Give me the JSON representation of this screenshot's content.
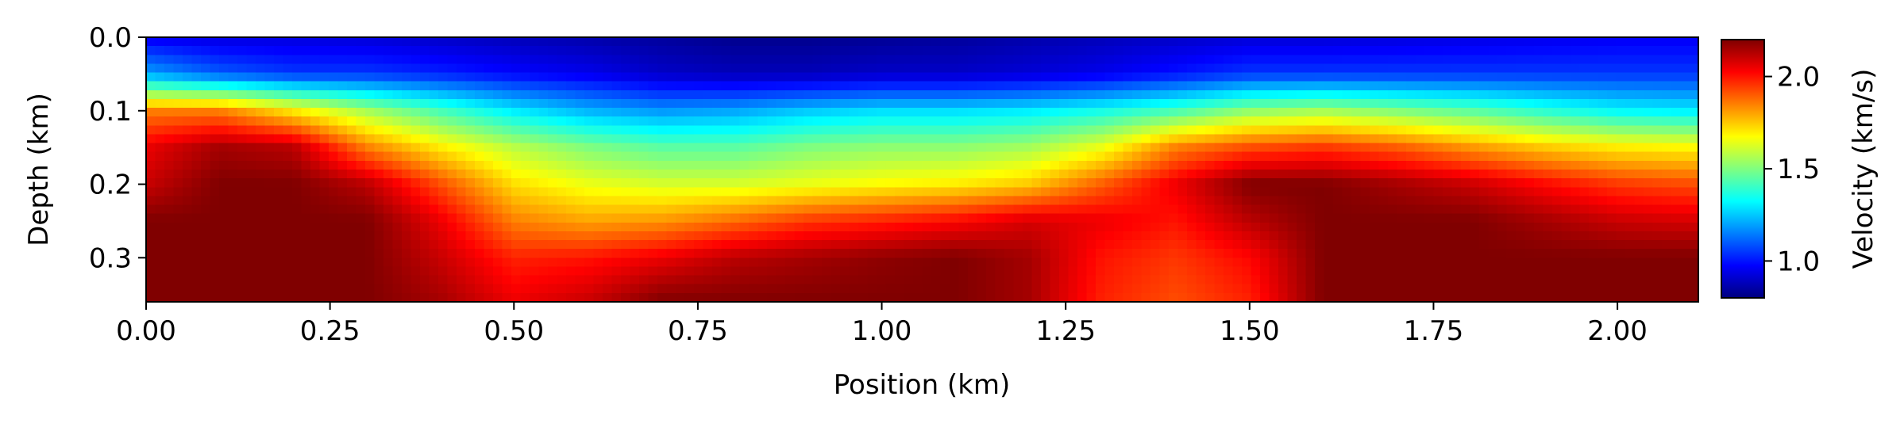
{
  "chart_data": {
    "type": "heatmap",
    "title": "",
    "xlabel": "Position (km)",
    "ylabel": "Depth (km)",
    "xlim": [
      0.0,
      2.11
    ],
    "ylim": [
      0.36,
      0.0
    ],
    "x_ticks": [
      {
        "value": 0.0,
        "label": "0.00"
      },
      {
        "value": 0.25,
        "label": "0.25"
      },
      {
        "value": 0.5,
        "label": "0.50"
      },
      {
        "value": 0.75,
        "label": "0.75"
      },
      {
        "value": 1.0,
        "label": "1.00"
      },
      {
        "value": 1.25,
        "label": "1.25"
      },
      {
        "value": 1.5,
        "label": "1.50"
      },
      {
        "value": 1.75,
        "label": "1.75"
      },
      {
        "value": 2.0,
        "label": "2.00"
      }
    ],
    "y_ticks": [
      {
        "value": 0.0,
        "label": "0.0"
      },
      {
        "value": 0.1,
        "label": "0.1"
      },
      {
        "value": 0.2,
        "label": "0.2"
      },
      {
        "value": 0.3,
        "label": "0.3"
      }
    ],
    "colormap": "jet",
    "colorbar": {
      "label": "Velocity (km/s)",
      "range": [
        0.8,
        2.2
      ],
      "ticks": [
        {
          "value": 1.0,
          "label": "1.0"
        },
        {
          "value": 1.5,
          "label": "1.5"
        },
        {
          "value": 2.0,
          "label": "2.0"
        }
      ]
    },
    "grid": false,
    "x_positions": [
      0.0,
      0.1,
      0.2,
      0.3,
      0.4,
      0.5,
      0.6,
      0.7,
      0.8,
      0.9,
      1.0,
      1.1,
      1.2,
      1.3,
      1.4,
      1.5,
      1.6,
      1.7,
      1.8,
      1.9,
      2.0,
      2.11
    ],
    "depths": [
      0.0,
      0.05,
      0.1,
      0.15,
      0.2,
      0.25,
      0.3,
      0.36
    ],
    "velocity": [
      [
        0.95,
        0.93,
        0.93,
        0.92,
        0.9,
        0.88,
        0.86,
        0.84,
        0.82,
        0.82,
        0.83,
        0.84,
        0.86,
        0.88,
        0.9,
        0.92,
        0.92,
        0.93,
        0.94,
        0.95,
        0.96,
        0.96
      ],
      [
        1.2,
        1.1,
        1.05,
        1.05,
        1.02,
        0.98,
        0.95,
        0.9,
        0.88,
        0.88,
        0.9,
        0.9,
        0.92,
        0.95,
        1.0,
        1.05,
        1.05,
        1.05,
        1.05,
        1.05,
        1.05,
        1.05
      ],
      [
        1.85,
        1.85,
        1.7,
        1.55,
        1.42,
        1.3,
        1.22,
        1.18,
        1.2,
        1.25,
        1.28,
        1.28,
        1.3,
        1.35,
        1.42,
        1.52,
        1.55,
        1.5,
        1.45,
        1.38,
        1.32,
        1.3
      ],
      [
        2.05,
        2.15,
        2.12,
        1.85,
        1.7,
        1.58,
        1.5,
        1.45,
        1.45,
        1.5,
        1.52,
        1.52,
        1.55,
        1.65,
        1.85,
        1.92,
        1.95,
        1.9,
        1.82,
        1.75,
        1.7,
        1.68
      ],
      [
        2.1,
        2.2,
        2.2,
        2.12,
        1.92,
        1.72,
        1.65,
        1.62,
        1.62,
        1.65,
        1.68,
        1.7,
        1.75,
        1.9,
        2.05,
        2.2,
        2.2,
        2.15,
        2.1,
        2.02,
        1.95,
        1.92
      ],
      [
        2.2,
        2.2,
        2.2,
        2.2,
        2.05,
        1.85,
        1.8,
        1.82,
        1.88,
        1.95,
        1.98,
        2.02,
        2.08,
        2.05,
        2.0,
        2.12,
        2.2,
        2.2,
        2.2,
        2.15,
        2.1,
        2.08
      ],
      [
        2.2,
        2.2,
        2.2,
        2.2,
        2.1,
        1.98,
        2.0,
        2.05,
        2.12,
        2.15,
        2.18,
        2.2,
        2.15,
        2.0,
        1.95,
        2.02,
        2.2,
        2.2,
        2.2,
        2.2,
        2.2,
        2.2
      ],
      [
        2.2,
        2.2,
        2.2,
        2.2,
        2.15,
        2.05,
        2.1,
        2.2,
        2.2,
        2.2,
        2.2,
        2.2,
        2.15,
        1.98,
        1.92,
        1.98,
        2.2,
        2.2,
        2.2,
        2.2,
        2.2,
        2.2
      ]
    ]
  }
}
